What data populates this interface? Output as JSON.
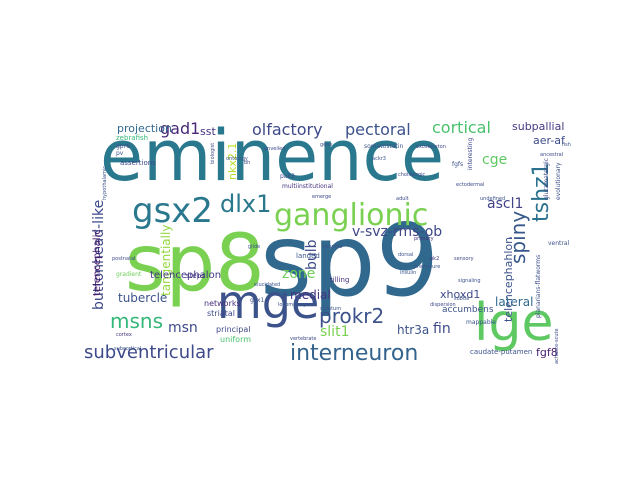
{
  "words": [
    {
      "text": "eminence",
      "color": "#2a788e"
    },
    {
      "text": "sp9",
      "color": "#31688e"
    },
    {
      "text": "sp8",
      "color": "#7ad151"
    },
    {
      "text": "mge",
      "color": "#3b528b"
    },
    {
      "text": "lge",
      "color": "#5ec962"
    },
    {
      "text": "gsx2",
      "color": "#2a788e"
    },
    {
      "text": "ganglionic",
      "color": "#7ad151"
    },
    {
      "text": "dlx1",
      "color": "#2a788e"
    },
    {
      "text": "interneuron",
      "color": "#33638d"
    },
    {
      "text": "subventricular",
      "color": "#3e4a89"
    },
    {
      "text": "msns",
      "color": "#35b779"
    },
    {
      "text": "tshz1",
      "color": "#2c728e"
    },
    {
      "text": "spiny",
      "color": "#38588c"
    },
    {
      "text": "prokr2",
      "color": "#3b528b"
    },
    {
      "text": "olfactory",
      "color": "#3e4989"
    },
    {
      "text": "pectoral",
      "color": "#3b528b"
    },
    {
      "text": "cortical",
      "color": "#4ac16d"
    },
    {
      "text": "gad1",
      "color": "#482878"
    },
    {
      "text": "buttonhead-like",
      "color": "#3e4a89"
    },
    {
      "text": "v-svz-rms-ob",
      "color": "#3f4788"
    },
    {
      "text": "bulb",
      "color": "#3e4c8a"
    },
    {
      "text": "ascl1",
      "color": "#404387"
    },
    {
      "text": "cge",
      "color": "#5ec962"
    },
    {
      "text": "zone",
      "color": "#6ece58"
    },
    {
      "text": "slit1",
      "color": "#7ad151"
    },
    {
      "text": "fin",
      "color": "#3e4a89"
    },
    {
      "text": "msn",
      "color": "#3e4989"
    },
    {
      "text": "medial",
      "color": "#46337e"
    },
    {
      "text": "tangentially",
      "color": "#95d840"
    },
    {
      "text": "telencephalon",
      "color": "#443983"
    },
    {
      "text": "telencephahlon",
      "color": "#3b528b"
    },
    {
      "text": "telencephalic",
      "color": "#481668"
    },
    {
      "text": "xhoxd1",
      "color": "#3e4989"
    },
    {
      "text": "lateral",
      "color": "#31688e"
    },
    {
      "text": "tubercle",
      "color": "#3b528b"
    },
    {
      "text": "htr3a",
      "color": "#3b528b"
    },
    {
      "text": "fgf8",
      "color": "#481f70"
    },
    {
      "text": "subpallial",
      "color": "#443a83"
    },
    {
      "text": "aer-af",
      "color": "#3e4a89"
    },
    {
      "text": "projection",
      "color": "#31688e"
    },
    {
      "text": "sst",
      "color": "#46337e"
    },
    {
      "text": "nkx2.1",
      "color": "#b5de2b"
    },
    {
      "text": "accumbens",
      "color": "#3b528b"
    },
    {
      "text": "networks",
      "color": "#472f7d"
    },
    {
      "text": "striatal",
      "color": "#3e4989"
    },
    {
      "text": "principal",
      "color": "#3e4a89"
    },
    {
      "text": "uniform",
      "color": "#4ac16d"
    },
    {
      "text": "caudate-putamen",
      "color": "#3b528b"
    },
    {
      "text": "mappable",
      "color": "#3b528b"
    },
    {
      "text": "steps",
      "color": "#443983"
    },
    {
      "text": "landed",
      "color": "#3b528b"
    },
    {
      "text": "tilling",
      "color": "#46327e"
    },
    {
      "text": "assertions",
      "color": "#3e4989"
    },
    {
      "text": "zebrafish",
      "color": "#35b779"
    },
    {
      "text": "gradient",
      "color": "#6ece58"
    },
    {
      "text": "glutamatergic",
      "color": "#3e4a89"
    },
    {
      "text": "evolutionary",
      "color": "#3b528b"
    },
    {
      "text": "planarians-flatworms",
      "color": "#3b528b"
    },
    {
      "text": "achaete-scute",
      "color": "#3e4a89"
    },
    {
      "text": "somatostatin",
      "color": "#3b528b"
    },
    {
      "text": "exoskeleton",
      "color": "#3e4a89"
    },
    {
      "text": "multiinstitutional",
      "color": "#46337e"
    },
    {
      "text": "ventral",
      "color": "#3b528b"
    },
    {
      "text": "interesting",
      "color": "#3e4989"
    },
    {
      "text": "subcortical",
      "color": "#3b528b"
    },
    {
      "text": "primary",
      "color": "#46327e"
    },
    {
      "text": "postnatal",
      "color": "#3e4a89"
    },
    {
      "text": "dorsal",
      "color": "#3b528b"
    },
    {
      "text": "emerge",
      "color": "#3e4989"
    },
    {
      "text": "fgfs",
      "color": "#3b528b"
    },
    {
      "text": "pak3",
      "color": "#3e4a89"
    },
    {
      "text": "gsx1",
      "color": "#3b528b"
    },
    {
      "text": "pk2",
      "color": "#46337e"
    },
    {
      "text": "gpr6",
      "color": "#3e4989"
    },
    {
      "text": "pv",
      "color": "#3b528b"
    },
    {
      "text": "unveiled",
      "color": "#3e4a89"
    },
    {
      "text": "striatum",
      "color": "#3b528b"
    },
    {
      "text": "ackr3",
      "color": "#3b528b"
    },
    {
      "text": "bh",
      "color": "#3e4989"
    },
    {
      "text": "insulin",
      "color": "#3b528b"
    },
    {
      "text": "ectodermal",
      "color": "#3e4a89"
    },
    {
      "text": "fish",
      "color": "#3b528b"
    },
    {
      "text": "biologist",
      "color": "#3e4989"
    },
    {
      "text": "cortex",
      "color": "#46337e"
    },
    {
      "text": "ontology",
      "color": "#3b528b"
    },
    {
      "text": "locomotory",
      "color": "#3b528b"
    },
    {
      "text": "cholinergic",
      "color": "#3e4a89"
    },
    {
      "text": "elucidated",
      "color": "#3b528b"
    },
    {
      "text": "glide",
      "color": "#3b528b"
    },
    {
      "text": "vertebrate",
      "color": "#3e4989"
    },
    {
      "text": "premature",
      "color": "#3b528b"
    },
    {
      "text": "dispersion",
      "color": "#3e4a89"
    },
    {
      "text": "subtle",
      "color": "#3b528b"
    },
    {
      "text": "undefined",
      "color": "#3b528b"
    },
    {
      "text": "ancestral",
      "color": "#3e4989"
    },
    {
      "text": "hypothalamic",
      "color": "#3b528b"
    },
    {
      "text": "sensory",
      "color": "#3e4a89"
    },
    {
      "text": "signaling",
      "color": "#3b528b"
    },
    {
      "text": "neurons",
      "color": "#3b528b"
    },
    {
      "text": "adult",
      "color": "#3e4989"
    },
    {
      "text": "gene",
      "color": "#3b528b"
    }
  ]
}
